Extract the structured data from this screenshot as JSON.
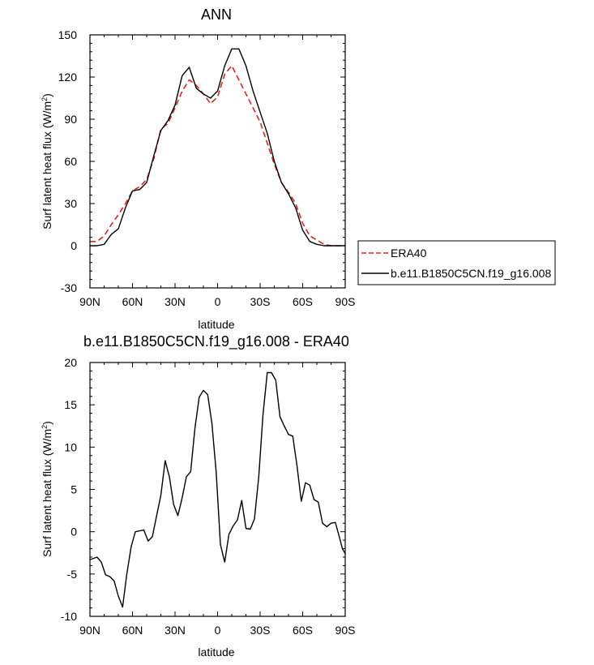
{
  "chart_data": [
    {
      "type": "line",
      "title": "ANN",
      "xlabel": "latitude",
      "ylabel_main": "Surf latent heat flux (W/m",
      "ylabel_sup": "2",
      "ylabel_close": ")",
      "xlim": [
        90,
        -90
      ],
      "ylim": [
        -30,
        150
      ],
      "x_ticks": [
        90,
        60,
        30,
        0,
        -30,
        -60,
        -90
      ],
      "x_tick_labels": [
        "90N",
        "60N",
        "30N",
        "0",
        "30S",
        "60S",
        "90S"
      ],
      "y_ticks": [
        -30,
        0,
        30,
        60,
        90,
        120,
        150
      ],
      "y_tick_labels": [
        "-30",
        "0",
        "30",
        "60",
        "90",
        "120",
        "150"
      ],
      "legend_position": "right",
      "series": [
        {
          "name": "ERA40",
          "color": "#e8201f",
          "dash": "dashed",
          "x": [
            90,
            85,
            80,
            75,
            70,
            65,
            60,
            55,
            50,
            45,
            40,
            35,
            30,
            25,
            20,
            15,
            10,
            5,
            0,
            -5,
            -10,
            -15,
            -20,
            -25,
            -30,
            -35,
            -40,
            -45,
            -50,
            -55,
            -60,
            -65,
            -70,
            -75,
            -80,
            -85,
            -90
          ],
          "y": [
            3,
            3,
            7,
            15,
            22,
            30,
            39,
            42,
            47,
            62,
            83,
            87,
            98,
            110,
            118,
            114,
            108,
            101,
            106,
            122,
            128,
            118,
            108,
            98,
            88,
            73,
            58,
            45,
            38,
            30,
            16,
            7,
            4,
            1,
            0,
            0,
            0
          ]
        },
        {
          "name": "b.e11.B1850C5CN.f19_g16.008",
          "color": "#000000",
          "dash": "solid",
          "x": [
            90,
            85,
            80,
            75,
            70,
            65,
            60,
            55,
            50,
            45,
            40,
            35,
            30,
            25,
            20,
            15,
            10,
            5,
            0,
            -5,
            -10,
            -15,
            -20,
            -25,
            -30,
            -35,
            -40,
            -45,
            -50,
            -55,
            -60,
            -65,
            -70,
            -75,
            -80,
            -85,
            -90
          ],
          "y": [
            0,
            0,
            1,
            8,
            12,
            27,
            39,
            40,
            45,
            64,
            82,
            89,
            100,
            121,
            127,
            112,
            108,
            105,
            110,
            128,
            140,
            140,
            128,
            110,
            95,
            80,
            60,
            45,
            37,
            27,
            11,
            3,
            1,
            0,
            0,
            0,
            0
          ]
        }
      ]
    },
    {
      "type": "line",
      "title": "b.e11.B1850C5CN.f19_g16.008 - ERA40",
      "xlabel": "latitude",
      "ylabel_main": "Surf latent heat flux (W/m",
      "ylabel_sup": "2",
      "ylabel_close": ")",
      "xlim": [
        90,
        -90
      ],
      "ylim": [
        -10,
        20
      ],
      "x_ticks": [
        90,
        60,
        30,
        0,
        -30,
        -60,
        -90
      ],
      "x_tick_labels": [
        "90N",
        "60N",
        "30N",
        "0",
        "30S",
        "60S",
        "90S"
      ],
      "y_ticks": [
        -10,
        -5,
        0,
        5,
        10,
        15,
        20
      ],
      "y_tick_labels": [
        "-10",
        "-5",
        "0",
        "5",
        "10",
        "15",
        "20"
      ],
      "series": [
        {
          "color": "#000000",
          "dash": "solid",
          "x": [
            90,
            85,
            82,
            79,
            76,
            73,
            70,
            67,
            64,
            61,
            58,
            55,
            52,
            49,
            46,
            43,
            40,
            37,
            34,
            31,
            28,
            25,
            22,
            19,
            16,
            13,
            10,
            7,
            4,
            1,
            -2,
            -5,
            -8,
            -11,
            -14,
            -17,
            -20,
            -23,
            -26,
            -29,
            -32,
            -35,
            -38,
            -41,
            -44,
            -47,
            -50,
            -53,
            -56,
            -59,
            -62,
            -65,
            -68,
            -71,
            -74,
            -77,
            -80,
            -83,
            -86,
            -88,
            -90
          ],
          "y": [
            -3.3,
            -3.0,
            -3.6,
            -5.1,
            -5.3,
            -5.8,
            -7.6,
            -8.9,
            -5.0,
            -1.8,
            0.0,
            0.1,
            0.2,
            -1.1,
            -0.6,
            1.9,
            4.3,
            8.4,
            6.5,
            3.2,
            1.9,
            4.0,
            6.5,
            7.1,
            12.2,
            15.9,
            16.7,
            16.2,
            12.8,
            7.0,
            -1.5,
            -3.6,
            -0.3,
            0.7,
            1.4,
            3.7,
            0.4,
            0.3,
            1.5,
            6.5,
            13.8,
            18.8,
            18.8,
            17.9,
            13.6,
            12.5,
            11.5,
            11.3,
            7.8,
            3.6,
            5.8,
            5.5,
            3.8,
            3.5,
            1.0,
            0.6,
            1.0,
            1.1,
            -0.7,
            -2.0,
            -2.6
          ]
        }
      ]
    }
  ]
}
